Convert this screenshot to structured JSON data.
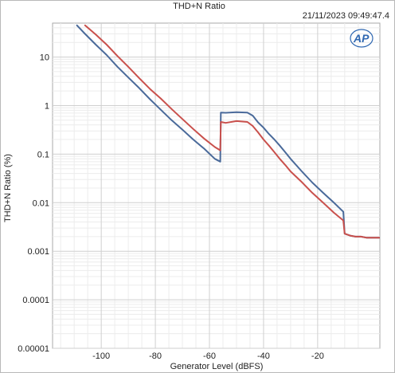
{
  "chart_data": {
    "type": "line",
    "title": "THD+N Ratio",
    "timestamp": "21/11/2023 09:49:47.4",
    "xlabel": "Generator Level (dBFS)",
    "ylabel": "THD+N Ratio (%)",
    "xlim": [
      -118,
      3
    ],
    "ylim": [
      1e-05,
      50
    ],
    "y_scale": "log",
    "x_ticks": [
      -100,
      -80,
      -60,
      -40,
      -20
    ],
    "x_tick_labels": [
      "-100",
      "-80",
      "-60",
      "-40",
      "-20"
    ],
    "y_ticks": [
      10,
      1,
      0.1,
      0.01,
      0.001,
      0.0001,
      1e-05
    ],
    "y_tick_labels": [
      "10",
      "1",
      "0.1",
      "0.01",
      "0.001",
      "0.0001",
      "0.00001"
    ],
    "grid": true,
    "legend": "none",
    "series": [
      {
        "color": "#4a6a9a",
        "x": [
          -109,
          -106,
          -102,
          -98,
          -94,
          -90,
          -86,
          -82,
          -78,
          -74,
          -70,
          -66,
          -62,
          -58,
          -56,
          -55.8,
          -54,
          -50,
          -46,
          -44,
          -42,
          -40,
          -38,
          -36,
          -34,
          -32,
          -30,
          -26,
          -22,
          -18,
          -14,
          -10.5,
          -10,
          -8,
          -6,
          -4,
          -2,
          0,
          3
        ],
        "y": [
          45,
          30,
          18,
          11,
          6.3,
          3.8,
          2.3,
          1.35,
          0.82,
          0.5,
          0.32,
          0.2,
          0.13,
          0.08,
          0.07,
          0.72,
          0.71,
          0.73,
          0.72,
          0.62,
          0.45,
          0.35,
          0.26,
          0.2,
          0.15,
          0.11,
          0.08,
          0.045,
          0.026,
          0.016,
          0.01,
          0.0065,
          0.0023,
          0.0021,
          0.002,
          0.002,
          0.0019,
          0.0019,
          0.0019
        ]
      },
      {
        "color": "#c9504c",
        "x": [
          -106,
          -102,
          -98,
          -94,
          -90,
          -86,
          -82,
          -78,
          -74,
          -70,
          -66,
          -62,
          -58,
          -56,
          -55.8,
          -54,
          -50,
          -46,
          -44,
          -42,
          -40,
          -38,
          -36,
          -34,
          -32,
          -30,
          -26,
          -22,
          -18,
          -14,
          -10.5,
          -10,
          -8,
          -6,
          -4,
          -2,
          0,
          3
        ],
        "y": [
          45,
          29,
          18,
          10.5,
          6.3,
          3.7,
          2.2,
          1.4,
          0.85,
          0.53,
          0.33,
          0.21,
          0.14,
          0.12,
          0.46,
          0.44,
          0.48,
          0.46,
          0.38,
          0.28,
          0.2,
          0.15,
          0.11,
          0.08,
          0.06,
          0.044,
          0.027,
          0.016,
          0.01,
          0.0062,
          0.0043,
          0.0023,
          0.0021,
          0.002,
          0.002,
          0.0019,
          0.0019,
          0.0019
        ]
      }
    ]
  },
  "logo": {
    "text": "AP",
    "color": "#2f67b1"
  }
}
